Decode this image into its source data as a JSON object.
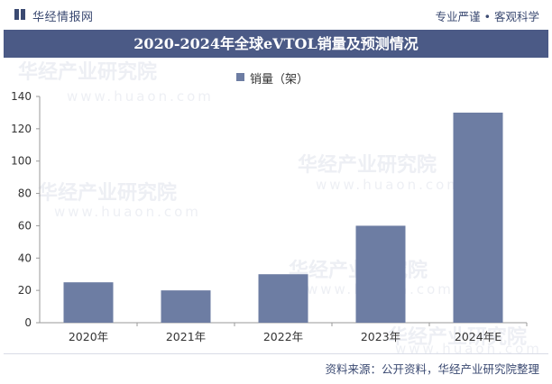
{
  "header": {
    "brand": "华经情报网",
    "slogan": "专业严谨 • 客观科学"
  },
  "watermark": {
    "text": "华经产业研究院",
    "url": "www.huaon.com"
  },
  "footer": {
    "source": "资料来源：公开资料，华经产业研究院整理"
  },
  "colors": {
    "title_bar": "#4b5a86",
    "bar": "#6d7da3",
    "brand_text": "#3b4a72"
  },
  "chart_data": {
    "type": "bar",
    "title": "2020-2024年全球eVTOL销量及预测情况",
    "categories": [
      "2020年",
      "2021年",
      "2022年",
      "2023年",
      "2024年E"
    ],
    "series": [
      {
        "name": "销量（架）",
        "values": [
          25,
          20,
          30,
          60,
          130
        ]
      }
    ],
    "ylim": [
      0,
      140
    ],
    "yticks": [
      0,
      20,
      40,
      60,
      80,
      100,
      120,
      140
    ],
    "xlabel": "",
    "ylabel": "",
    "legend": "top-center",
    "grid": false
  }
}
